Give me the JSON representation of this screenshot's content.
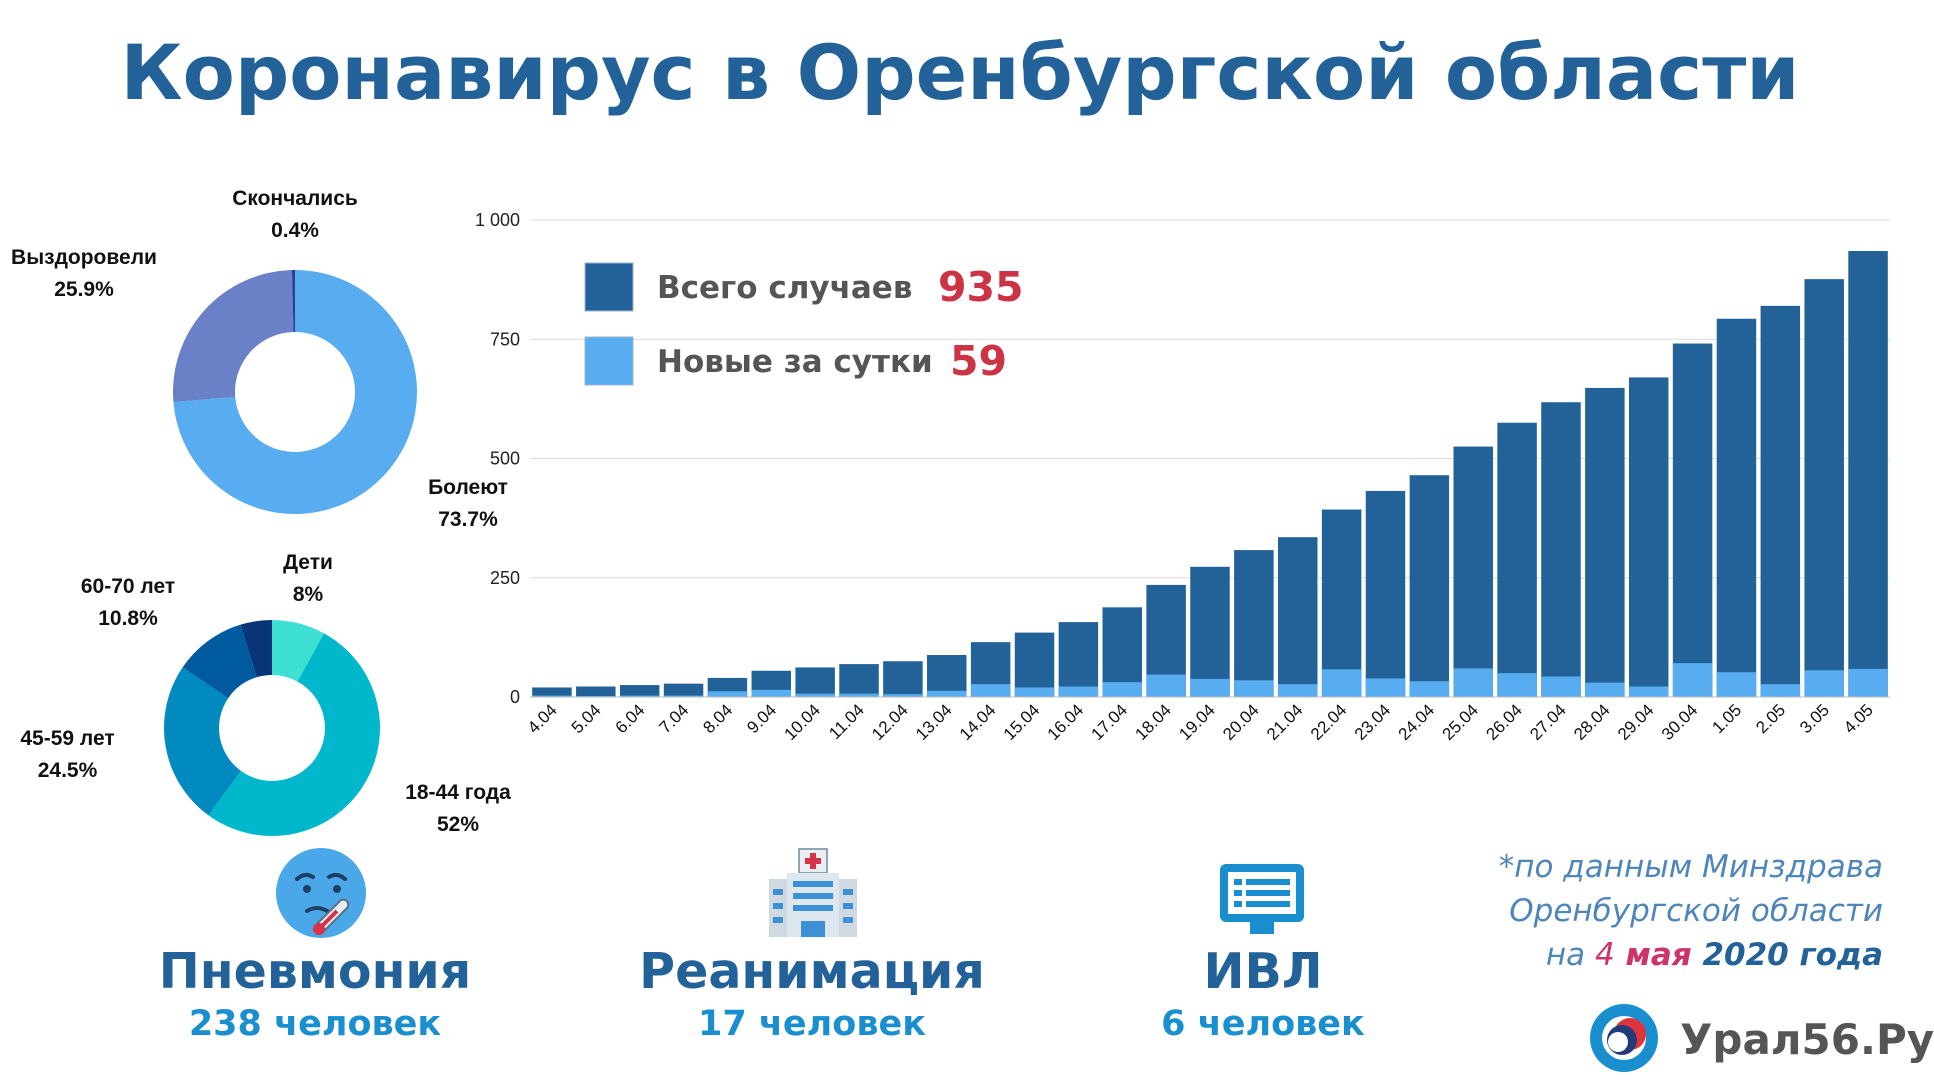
{
  "title": "Коронавирус в Оренбургской области",
  "status_donut": {
    "slices": [
      {
        "label": "Болеют",
        "percent": "73.7%",
        "value": 73.7,
        "color": "#58acf0"
      },
      {
        "label": "Выздоровели",
        "percent": "25.9%",
        "value": 25.9,
        "color": "#6b81c7"
      },
      {
        "label": "Скончались",
        "percent": "0.4%",
        "value": 0.4,
        "color": "#2e3f8f"
      }
    ]
  },
  "age_donut": {
    "slices": [
      {
        "label": "Дети",
        "percent": "8%",
        "value": 8,
        "color": "#3ee0d4"
      },
      {
        "label": "18-44 года",
        "percent": "52%",
        "value": 52,
        "color": "#00b7cc"
      },
      {
        "label": "45-59 лет",
        "percent": "24.5%",
        "value": 24.5,
        "color": "#008ac0"
      },
      {
        "label": "60-70 лет",
        "percent": "10.8%",
        "value": 10.8,
        "color": "#005a9e"
      },
      {
        "label": "",
        "percent": "",
        "value": 4.7,
        "color": "#0a3478"
      }
    ]
  },
  "chart_data": {
    "type": "bar",
    "categories": [
      "4.04",
      "5.04",
      "6.04",
      "7.04",
      "8.04",
      "9.04",
      "10.04",
      "11.04",
      "12.04",
      "13.04",
      "14.04",
      "15.04",
      "16.04",
      "17.04",
      "18.04",
      "19.04",
      "20.04",
      "21.04",
      "22.04",
      "23.04",
      "24.04",
      "25.04",
      "26.04",
      "27.04",
      "28.04",
      "29.04",
      "30.04",
      "1.05",
      "2.05",
      "3.05",
      "4.05"
    ],
    "series": [
      {
        "name": "Всего случаев",
        "color": "#236199",
        "values": [
          20,
          22,
          25,
          28,
          40,
          55,
          62,
          69,
          75,
          88,
          115,
          135,
          157,
          188,
          235,
          273,
          308,
          335,
          393,
          432,
          465,
          525,
          575,
          618,
          648,
          670,
          741,
          793,
          820,
          876,
          935
        ]
      },
      {
        "name": "Новые за сутки",
        "color": "#58acf0",
        "values": [
          3,
          2,
          3,
          3,
          12,
          15,
          7,
          7,
          6,
          13,
          27,
          20,
          22,
          31,
          47,
          38,
          35,
          27,
          58,
          39,
          33,
          60,
          50,
          43,
          30,
          22,
          71,
          52,
          27,
          56,
          59
        ]
      }
    ],
    "xlabel": "",
    "ylabel": "",
    "ylim": [
      0,
      1000
    ],
    "yticks": [
      0,
      250,
      500,
      750,
      1000
    ],
    "ytick_labels": [
      "0",
      "250",
      "500",
      "750",
      "1 000"
    ],
    "grid": true,
    "legend": {
      "position": "top-left",
      "items": [
        {
          "label": "Всего случаев",
          "value": "935",
          "color": "#236199"
        },
        {
          "label": "Новые за сутки",
          "value": "59",
          "color": "#58acf0"
        }
      ],
      "value_color": "#cc3344"
    }
  },
  "stats": [
    {
      "title": "Пневмония",
      "value": "238 человек",
      "icon": "thermometer-face-icon"
    },
    {
      "title": "Реанимация",
      "value": "17 человек",
      "icon": "hospital-icon"
    },
    {
      "title": "ИВЛ",
      "value": "6 человек",
      "icon": "monitor-icon"
    }
  ],
  "source": {
    "line1": "*по данным Минздрава",
    "line2": "Оренбургской области",
    "line3_prefix": "на ",
    "line3_day": "4",
    "line3_month": " мая",
    "line3_year": " 2020 года"
  },
  "logo": {
    "text": "Урал56.Ру",
    "icon": "ural56-logo-icon"
  }
}
